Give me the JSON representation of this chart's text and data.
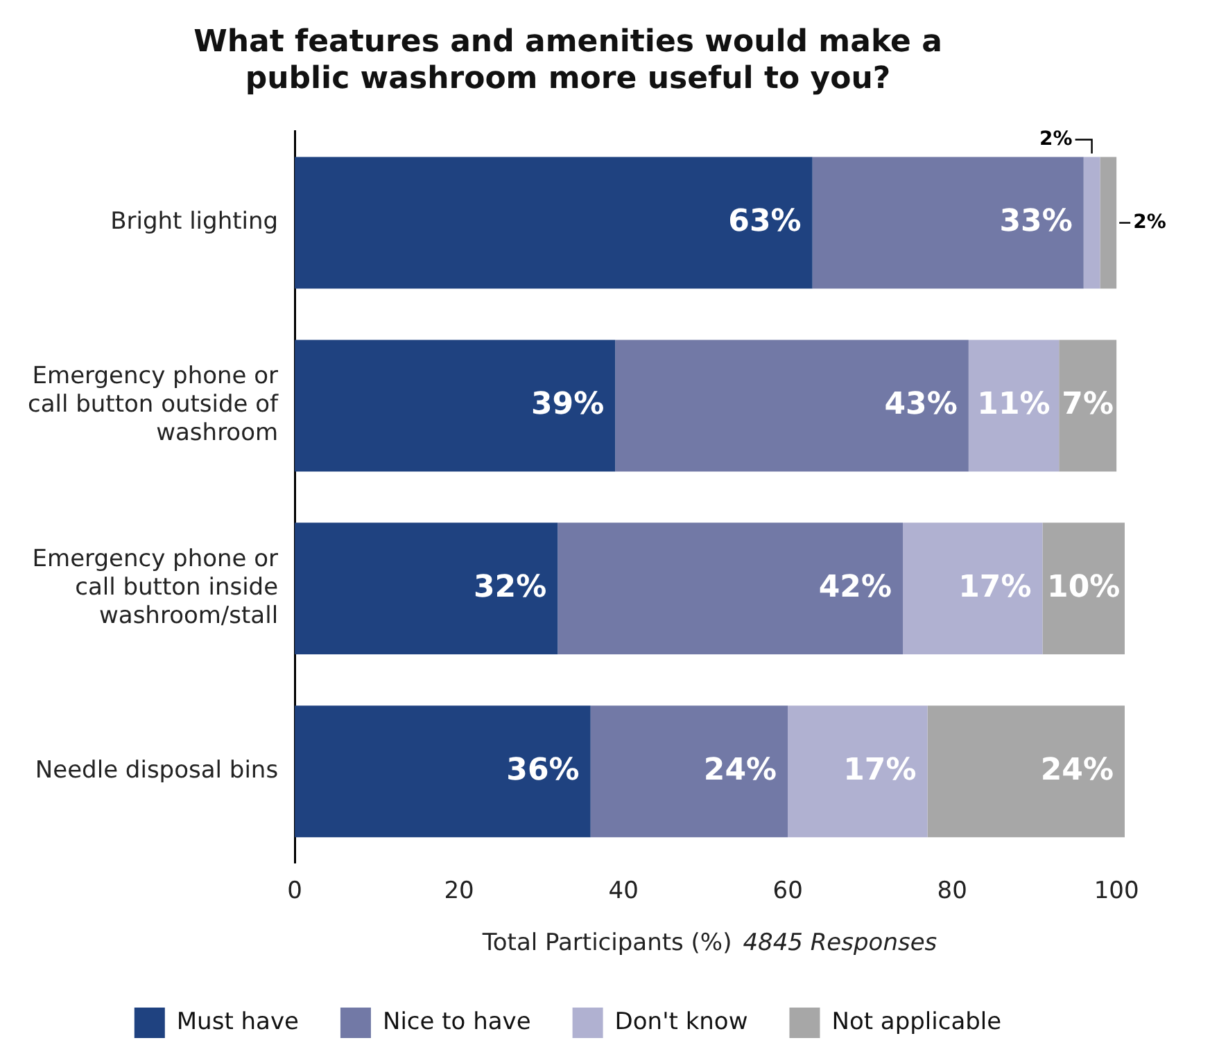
{
  "chart_data": {
    "type": "bar",
    "orientation": "horizontal",
    "stacked": true,
    "title": "What features and amenities would make a public washroom more useful to you?",
    "xlabel": "Total Participants (%)",
    "annotations": [
      "4845 Responses"
    ],
    "categories": [
      "Bright lighting",
      "Emergency phone or call button outside of washroom",
      "Emergency phone or call button inside washroom/stall",
      "Needle disposal bins"
    ],
    "series": [
      {
        "name": "Must have",
        "color": "#1f4280",
        "values": [
          63,
          39,
          32,
          36
        ],
        "value_labels": [
          "63%",
          "39%",
          "32%",
          "36%"
        ]
      },
      {
        "name": "Nice to have",
        "color": "#7279a6",
        "values": [
          33,
          43,
          42,
          24
        ],
        "value_labels": [
          "33%",
          "43%",
          "42%",
          "24%"
        ]
      },
      {
        "name": "Don't know",
        "color": "#b0b1d1",
        "values": [
          2,
          11,
          17,
          17
        ],
        "value_labels": [
          "2%",
          "11%",
          "17%",
          "17%"
        ]
      },
      {
        "name": "Not applicable",
        "color": "#a7a7a7",
        "values": [
          2,
          7,
          10,
          24
        ],
        "value_labels": [
          "2%",
          "7%",
          "10%",
          "24%"
        ]
      }
    ],
    "xlim": [
      0,
      101
    ],
    "xticks": [
      0,
      20,
      40,
      60,
      80,
      100
    ],
    "grid": false,
    "legend": "bottom"
  }
}
